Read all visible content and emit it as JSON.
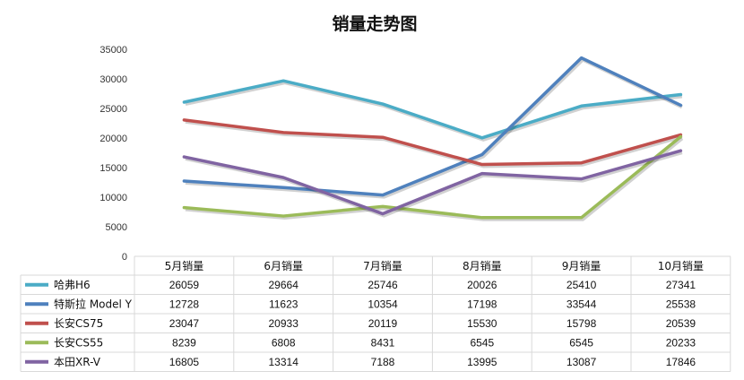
{
  "chart_data": {
    "type": "line",
    "title": "销量走势图",
    "categories": [
      "5月销量",
      "6月销量",
      "7月销量",
      "8月销量",
      "9月销量",
      "10月销量"
    ],
    "ylim": [
      0,
      35000
    ],
    "yticks": [
      "0",
      "5000",
      "10000",
      "15000",
      "20000",
      "25000",
      "30000",
      "35000"
    ],
    "grid": false,
    "legend": "data-table-below",
    "series": [
      {
        "name": "哈弗H6",
        "color": "#4bacc6",
        "values": [
          26059,
          29664,
          25746,
          20026,
          25410,
          27341
        ]
      },
      {
        "name": "特斯拉 Model Y",
        "color": "#4f81bd",
        "values": [
          12728,
          11623,
          10354,
          17198,
          33544,
          25538
        ]
      },
      {
        "name": "长安CS75",
        "color": "#c0504d",
        "values": [
          23047,
          20933,
          20119,
          15530,
          15798,
          20539
        ]
      },
      {
        "name": "长安CS55",
        "color": "#9bbb59",
        "values": [
          8239,
          6808,
          8431,
          6545,
          6545,
          20233
        ]
      },
      {
        "name": "本田XR-V",
        "color": "#8064a2",
        "values": [
          16805,
          13314,
          7188,
          13995,
          13087,
          17846
        ]
      }
    ]
  }
}
